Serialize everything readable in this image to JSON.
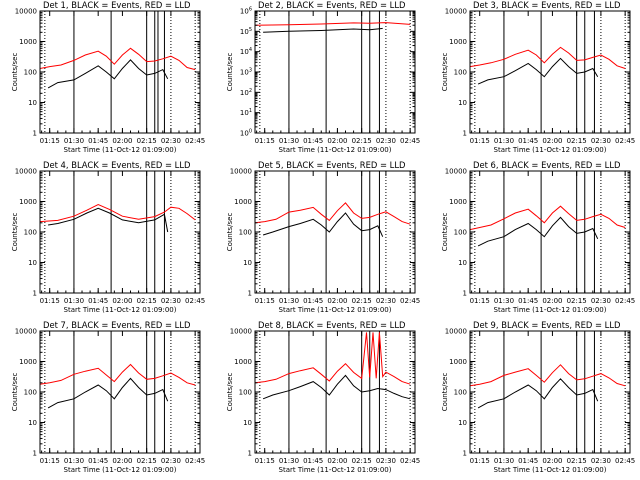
{
  "figure": {
    "background": "#ffffff",
    "axis_color": "#000000"
  },
  "chart_data": [
    {
      "type": "line",
      "title": "Det 1, BLACK = Events, RED = LLD",
      "xlabel": "Start Time (11-Oct-12 01:09:00)",
      "ylabel": "Counts/sec",
      "yscale": "log",
      "ylim": [
        1,
        10000
      ],
      "yticks": [
        "1",
        "10",
        "100",
        "1000",
        "10000"
      ],
      "xticks": [
        "01:15",
        "01:30",
        "01:45",
        "02:00",
        "02:15",
        "02:30",
        "02:45"
      ],
      "xlim": [
        "01:09",
        "02:48"
      ],
      "grid": false,
      "legend": "none",
      "solid_vlines": [
        "01:30",
        "01:53",
        "02:15",
        "02:20",
        "02:22",
        "02:26"
      ],
      "dotted_vlines": [
        "01:12",
        "02:30",
        "02:45"
      ],
      "series": [
        {
          "color": "#ff0000",
          "x": [
            "01:09",
            "01:15",
            "01:22",
            "01:30",
            "01:37",
            "01:45",
            "01:50",
            "01:55",
            "02:00",
            "02:05",
            "02:10",
            "02:15",
            "02:20",
            "02:25",
            "02:30",
            "02:35",
            "02:40",
            "02:45"
          ],
          "values": [
            130,
            150,
            170,
            240,
            360,
            480,
            330,
            180,
            360,
            600,
            380,
            220,
            230,
            270,
            330,
            240,
            140,
            120
          ]
        },
        {
          "color": "#000000",
          "x": [
            "01:14",
            "01:20",
            "01:30",
            "01:37",
            "01:45",
            "01:50",
            "01:55",
            "02:00",
            "02:05",
            "02:10",
            "02:15",
            "02:20",
            "02:25",
            "02:28"
          ],
          "values": [
            30,
            45,
            55,
            90,
            160,
            100,
            60,
            130,
            250,
            130,
            80,
            90,
            120,
            60
          ]
        }
      ]
    },
    {
      "type": "line",
      "title": "Det 2, BLACK = Events, RED = LLD",
      "xlabel": "Start Time (11-Oct-12 01:09:00)",
      "ylabel": "Counts/sec",
      "yscale": "log",
      "ylim": [
        1,
        1000000
      ],
      "yticks": [
        "10^0",
        "10^1",
        "10^2",
        "10^3",
        "10^4",
        "10^5",
        "10^6"
      ],
      "xticks": [
        "01:15",
        "01:30",
        "01:45",
        "02:00",
        "02:15",
        "02:30",
        "02:45"
      ],
      "xlim": [
        "01:09",
        "02:48"
      ],
      "grid": false,
      "legend": "none",
      "solid_vlines": [
        "01:30",
        "01:53",
        "02:15",
        "02:20",
        "02:26"
      ],
      "dotted_vlines": [
        "01:12",
        "02:30",
        "02:45"
      ],
      "series": [
        {
          "color": "#ff0000",
          "x": [
            "01:09",
            "01:30",
            "01:50",
            "02:10",
            "02:20",
            "02:30",
            "02:45"
          ],
          "values": [
            200000,
            210000,
            230000,
            260000,
            250000,
            270000,
            220000
          ]
        },
        {
          "color": "#000000",
          "x": [
            "01:14",
            "01:30",
            "01:50",
            "02:10",
            "02:20",
            "02:28"
          ],
          "values": [
            90000,
            100000,
            110000,
            130000,
            120000,
            140000
          ]
        }
      ]
    },
    {
      "type": "line",
      "title": "Det 3, BLACK = Events, RED = LLD",
      "xlabel": "Start Time (11-Oct-12 01:09:00)",
      "ylabel": "Counts/sec",
      "yscale": "log",
      "ylim": [
        1,
        10000
      ],
      "yticks": [
        "1",
        "10",
        "100",
        "1000",
        "10000"
      ],
      "xticks": [
        "01:15",
        "01:30",
        "01:45",
        "02:00",
        "02:15",
        "02:30",
        "02:45"
      ],
      "xlim": [
        "01:09",
        "02:48"
      ],
      "grid": false,
      "legend": "none",
      "solid_vlines": [
        "01:30",
        "01:53",
        "02:15",
        "02:20",
        "02:26"
      ],
      "dotted_vlines": [
        "01:12",
        "02:30",
        "02:45"
      ],
      "series": [
        {
          "color": "#ff0000",
          "x": [
            "01:09",
            "01:15",
            "01:22",
            "01:30",
            "01:37",
            "01:45",
            "01:50",
            "01:55",
            "02:00",
            "02:05",
            "02:10",
            "02:15",
            "02:20",
            "02:25",
            "02:30",
            "02:35",
            "02:40",
            "02:45"
          ],
          "values": [
            150,
            170,
            200,
            260,
            380,
            520,
            360,
            200,
            380,
            640,
            420,
            240,
            250,
            300,
            360,
            260,
            160,
            130
          ]
        },
        {
          "color": "#000000",
          "x": [
            "01:14",
            "01:20",
            "01:30",
            "01:37",
            "01:45",
            "01:50",
            "01:55",
            "02:00",
            "02:05",
            "02:10",
            "02:15",
            "02:20",
            "02:25",
            "02:28"
          ],
          "values": [
            40,
            55,
            70,
            110,
            190,
            120,
            70,
            150,
            280,
            150,
            90,
            100,
            130,
            70
          ]
        }
      ]
    },
    {
      "type": "line",
      "title": "Det 4, BLACK = Events, RED = LLD",
      "xlabel": "Start Time (11-Oct-12 01:09:00)",
      "ylabel": "Counts/sec",
      "yscale": "log",
      "ylim": [
        1,
        10000
      ],
      "yticks": [
        "1",
        "10",
        "100",
        "1000",
        "10000"
      ],
      "xticks": [
        "01:15",
        "01:30",
        "01:45",
        "02:00",
        "02:15",
        "02:30",
        "02:45"
      ],
      "xlim": [
        "01:09",
        "02:48"
      ],
      "grid": false,
      "legend": "none",
      "solid_vlines": [
        "01:30",
        "01:53",
        "02:15",
        "02:20",
        "02:26"
      ],
      "dotted_vlines": [
        "01:12",
        "02:30",
        "02:45"
      ],
      "series": [
        {
          "color": "#ff0000",
          "x": [
            "01:09",
            "01:20",
            "01:30",
            "01:38",
            "01:45",
            "01:52",
            "02:00",
            "02:10",
            "02:20",
            "02:26",
            "02:30",
            "02:35",
            "02:40",
            "02:45"
          ],
          "values": [
            220,
            240,
            330,
            520,
            800,
            550,
            330,
            260,
            320,
            450,
            650,
            600,
            400,
            250
          ]
        },
        {
          "color": "#000000",
          "x": [
            "01:14",
            "01:20",
            "01:30",
            "01:38",
            "01:45",
            "01:52",
            "02:00",
            "02:10",
            "02:20",
            "02:26",
            "02:28"
          ],
          "values": [
            170,
            190,
            260,
            420,
            600,
            420,
            250,
            200,
            250,
            380,
            100
          ]
        }
      ]
    },
    {
      "type": "line",
      "title": "Det 5, BLACK = Events, RED = LLD",
      "xlabel": "Start Time (11-Oct-12 01:09:00)",
      "ylabel": "Counts/sec",
      "yscale": "log",
      "ylim": [
        1,
        10000
      ],
      "yticks": [
        "1",
        "10",
        "100",
        "1000",
        "10000"
      ],
      "xticks": [
        "01:15",
        "01:30",
        "01:45",
        "02:00",
        "02:15",
        "02:30",
        "02:45"
      ],
      "xlim": [
        "01:09",
        "02:48"
      ],
      "grid": false,
      "legend": "none",
      "solid_vlines": [
        "01:30",
        "01:53",
        "02:15",
        "02:20",
        "02:26"
      ],
      "dotted_vlines": [
        "01:12",
        "02:30",
        "02:45"
      ],
      "series": [
        {
          "color": "#ff0000",
          "x": [
            "01:09",
            "01:15",
            "01:22",
            "01:30",
            "01:37",
            "01:45",
            "01:50",
            "01:55",
            "02:00",
            "02:05",
            "02:10",
            "02:15",
            "02:20",
            "02:25",
            "02:30",
            "02:35",
            "02:40",
            "02:45"
          ],
          "values": [
            200,
            220,
            260,
            450,
            520,
            640,
            380,
            240,
            500,
            900,
            420,
            280,
            300,
            380,
            460,
            320,
            220,
            180
          ]
        },
        {
          "color": "#000000",
          "x": [
            "01:14",
            "01:20",
            "01:30",
            "01:37",
            "01:45",
            "01:50",
            "01:55",
            "02:00",
            "02:05",
            "02:10",
            "02:15",
            "02:20",
            "02:25",
            "02:28"
          ],
          "values": [
            80,
            100,
            150,
            190,
            260,
            170,
            100,
            220,
            420,
            180,
            110,
            120,
            160,
            70
          ]
        }
      ]
    },
    {
      "type": "line",
      "title": "Det 6, BLACK = Events, RED = LLD",
      "xlabel": "Start Time (11-Oct-12 01:09:00)",
      "ylabel": "Counts/sec",
      "yscale": "log",
      "ylim": [
        1,
        10000
      ],
      "yticks": [
        "1",
        "10",
        "100",
        "1000",
        "10000"
      ],
      "xticks": [
        "01:15",
        "01:30",
        "01:45",
        "02:00",
        "02:15",
        "02:30",
        "02:45"
      ],
      "xlim": [
        "01:09",
        "02:48"
      ],
      "grid": false,
      "legend": "none",
      "solid_vlines": [
        "01:30",
        "01:53",
        "02:15",
        "02:20",
        "02:26"
      ],
      "dotted_vlines": [
        "01:12",
        "02:30",
        "02:45"
      ],
      "series": [
        {
          "color": "#ff0000",
          "x": [
            "01:09",
            "01:15",
            "01:22",
            "01:30",
            "01:37",
            "01:45",
            "01:50",
            "01:55",
            "02:00",
            "02:05",
            "02:10",
            "02:15",
            "02:20",
            "02:25",
            "02:30",
            "02:35",
            "02:40",
            "02:45"
          ],
          "values": [
            120,
            140,
            170,
            270,
            420,
            560,
            340,
            200,
            420,
            700,
            400,
            240,
            260,
            320,
            380,
            280,
            170,
            140
          ]
        },
        {
          "color": "#000000",
          "x": [
            "01:14",
            "01:20",
            "01:30",
            "01:37",
            "01:45",
            "01:50",
            "01:55",
            "02:00",
            "02:05",
            "02:10",
            "02:15",
            "02:20",
            "02:25",
            "02:28"
          ],
          "values": [
            35,
            50,
            70,
            120,
            190,
            120,
            70,
            160,
            300,
            150,
            90,
            100,
            130,
            60
          ]
        }
      ]
    },
    {
      "type": "line",
      "title": "Det 7, BLACK = Events, RED = LLD",
      "xlabel": "Start Time (11-Oct-12 01:09:00)",
      "ylabel": "Counts/sec",
      "yscale": "log",
      "ylim": [
        1,
        10000
      ],
      "yticks": [
        "1",
        "10",
        "100",
        "1000",
        "10000"
      ],
      "xticks": [
        "01:15",
        "01:30",
        "01:45",
        "02:00",
        "02:15",
        "02:30",
        "02:45"
      ],
      "xlim": [
        "01:09",
        "02:48"
      ],
      "grid": false,
      "legend": "none",
      "solid_vlines": [
        "01:30",
        "01:53",
        "02:15",
        "02:20",
        "02:26"
      ],
      "dotted_vlines": [
        "01:12",
        "02:30",
        "02:45"
      ],
      "series": [
        {
          "color": "#ff0000",
          "x": [
            "01:09",
            "01:15",
            "01:22",
            "01:30",
            "01:37",
            "01:45",
            "01:50",
            "01:55",
            "02:00",
            "02:05",
            "02:10",
            "02:15",
            "02:20",
            "02:25",
            "02:30",
            "02:35",
            "02:40",
            "02:45"
          ],
          "values": [
            180,
            200,
            240,
            380,
            480,
            600,
            360,
            220,
            450,
            800,
            420,
            260,
            280,
            340,
            420,
            300,
            200,
            170
          ]
        },
        {
          "color": "#000000",
          "x": [
            "01:14",
            "01:20",
            "01:30",
            "01:37",
            "01:45",
            "01:50",
            "01:55",
            "02:00",
            "02:05",
            "02:10",
            "02:15",
            "02:20",
            "02:25",
            "02:28"
          ],
          "values": [
            30,
            45,
            60,
            100,
            170,
            110,
            60,
            140,
            280,
            140,
            80,
            90,
            120,
            50
          ]
        }
      ]
    },
    {
      "type": "line",
      "title": "Det 8, BLACK = Events, RED = LLD",
      "xlabel": "Start Time (11-Oct-12 01:09:00)",
      "ylabel": "Counts/sec",
      "yscale": "log",
      "ylim": [
        1,
        10000
      ],
      "yticks": [
        "1",
        "10",
        "100",
        "1000",
        "10000"
      ],
      "xticks": [
        "01:15",
        "01:30",
        "01:45",
        "02:00",
        "02:15",
        "02:30",
        "02:45"
      ],
      "xlim": [
        "01:09",
        "02:48"
      ],
      "grid": false,
      "legend": "none",
      "solid_vlines": [
        "01:30",
        "01:53",
        "02:15",
        "02:20",
        "02:26"
      ],
      "dotted_vlines": [
        "01:12",
        "02:30",
        "02:45"
      ],
      "series": [
        {
          "color": "#ff0000",
          "x": [
            "01:09",
            "01:15",
            "01:22",
            "01:30",
            "01:37",
            "01:45",
            "01:50",
            "01:55",
            "02:00",
            "02:05",
            "02:10",
            "02:15",
            "02:18",
            "02:20",
            "02:22",
            "02:24",
            "02:26",
            "02:28",
            "02:30",
            "02:35",
            "02:40",
            "02:45"
          ],
          "values": [
            200,
            220,
            260,
            400,
            500,
            620,
            380,
            230,
            480,
            850,
            440,
            280,
            9000,
            300,
            9000,
            280,
            9000,
            320,
            450,
            320,
            220,
            180
          ]
        },
        {
          "color": "#000000",
          "x": [
            "01:14",
            "01:20",
            "01:30",
            "01:37",
            "01:45",
            "01:50",
            "01:55",
            "02:00",
            "02:05",
            "02:10",
            "02:15",
            "02:20",
            "02:25",
            "02:30",
            "02:35",
            "02:40",
            "02:45"
          ],
          "values": [
            60,
            80,
            110,
            150,
            220,
            140,
            80,
            180,
            350,
            160,
            100,
            110,
            130,
            120,
            90,
            70,
            60
          ]
        }
      ]
    },
    {
      "type": "line",
      "title": "Det 9, BLACK = Events, RED = LLD",
      "xlabel": "Start Time (11-Oct-12 01:09:00)",
      "ylabel": "Counts/sec",
      "yscale": "log",
      "ylim": [
        1,
        10000
      ],
      "yticks": [
        "1",
        "10",
        "100",
        "1000",
        "10000"
      ],
      "xticks": [
        "01:15",
        "01:30",
        "01:45",
        "02:00",
        "02:15",
        "02:30",
        "02:45"
      ],
      "xlim": [
        "01:09",
        "02:48"
      ],
      "grid": false,
      "legend": "none",
      "solid_vlines": [
        "01:30",
        "01:53",
        "02:15",
        "02:20",
        "02:26"
      ],
      "dotted_vlines": [
        "01:12",
        "02:30",
        "02:45"
      ],
      "series": [
        {
          "color": "#ff0000",
          "x": [
            "01:09",
            "01:15",
            "01:22",
            "01:30",
            "01:37",
            "01:45",
            "01:50",
            "01:55",
            "02:00",
            "02:05",
            "02:10",
            "02:15",
            "02:20",
            "02:25",
            "02:30",
            "02:35",
            "02:40",
            "02:45"
          ],
          "values": [
            160,
            180,
            220,
            350,
            450,
            580,
            350,
            210,
            430,
            780,
            400,
            250,
            270,
            330,
            400,
            290,
            190,
            160
          ]
        },
        {
          "color": "#000000",
          "x": [
            "01:14",
            "01:20",
            "01:30",
            "01:37",
            "01:45",
            "01:50",
            "01:55",
            "02:00",
            "02:05",
            "02:10",
            "02:15",
            "02:20",
            "02:25",
            "02:28"
          ],
          "values": [
            30,
            45,
            60,
            100,
            170,
            110,
            60,
            140,
            270,
            140,
            80,
            90,
            120,
            50
          ]
        }
      ]
    }
  ]
}
